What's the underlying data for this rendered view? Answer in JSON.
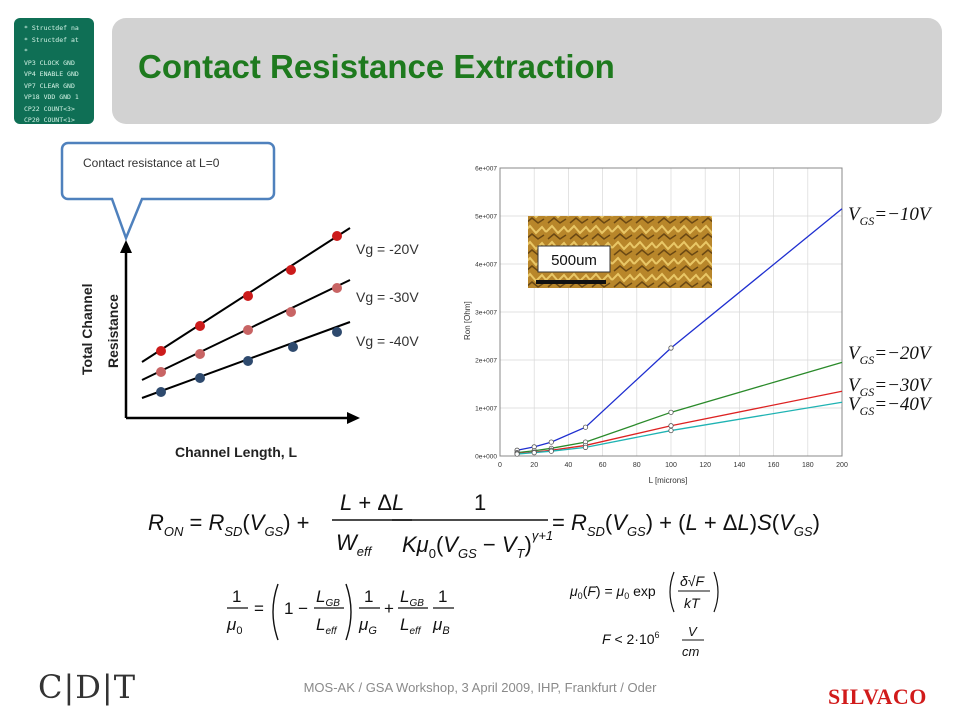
{
  "slide": {
    "title": "Contact Resistance Extraction",
    "footer": "MOS-AK / GSA Workshop, 3 April 2009,  IHP,  Frankfurt / Oder",
    "logo_left": "C|D|T",
    "logo_right": "SILVACO",
    "code_thumbnail_lines": [
      "* Structdef na",
      "* Structdef at",
      "*",
      "VP3 CLOCK GND",
      "VP4 ENABLE GND",
      "VP7 CLEAR GND",
      "VP18 VDD GND 1",
      "CP22 COUNT<3>",
      "CP20 COUNT<1>"
    ]
  },
  "callout": {
    "text": "Contact resistance at L=0"
  },
  "schematic": {
    "xlabel": "Channel Length, L",
    "ylabel_line1": "Total Channel",
    "ylabel_line2": "Resistance",
    "series_labels": [
      "Vg = -20V",
      "Vg = -30V",
      "Vg = -40V"
    ],
    "colors": {
      "vg20": "#cc1b1b",
      "vg30": "#c86464",
      "vg40": "#2e4a6e"
    }
  },
  "chart_data": {
    "type": "line",
    "xlabel": "L [microns]",
    "ylabel": "Ron [Ohm]",
    "xlim": [
      0,
      200
    ],
    "ylim": [
      0,
      60000000.0
    ],
    "xticks": [
      "0",
      "20",
      "40",
      "60",
      "80",
      "100",
      "120",
      "140",
      "160",
      "180",
      "200"
    ],
    "yticks": [
      "0e+000",
      "1e+007",
      "2e+007",
      "3e+007",
      "4e+007",
      "5e+007",
      "6e+007"
    ],
    "series": [
      {
        "name": "VGS=-10V",
        "color": "#1f2fd0",
        "x": [
          10,
          20,
          30,
          50,
          100,
          200
        ],
        "y": [
          1200000.0,
          1900000.0,
          2900000.0,
          6000000.0,
          22500000.0,
          51500000.0
        ]
      },
      {
        "name": "VGS=-20V",
        "color": "#2a8a2a",
        "x": [
          10,
          20,
          30,
          50,
          100,
          200
        ],
        "y": [
          700000.0,
          1100000.0,
          1600000.0,
          2900000.0,
          9100000.0,
          19500000.0
        ]
      },
      {
        "name": "VGS=-30V",
        "color": "#dd2222",
        "x": [
          10,
          20,
          30,
          50,
          100,
          200
        ],
        "y": [
          500000.0,
          800000.0,
          1200000.0,
          2200000.0,
          6300000.0,
          13500000.0
        ]
      },
      {
        "name": "VGS=-40V",
        "color": "#1fb3b3",
        "x": [
          10,
          20,
          30,
          50,
          100,
          200
        ],
        "y": [
          400000.0,
          700000.0,
          1000000.0,
          1800000.0,
          5300000.0,
          11200000.0
        ]
      }
    ],
    "inset_label": "500um"
  }
}
